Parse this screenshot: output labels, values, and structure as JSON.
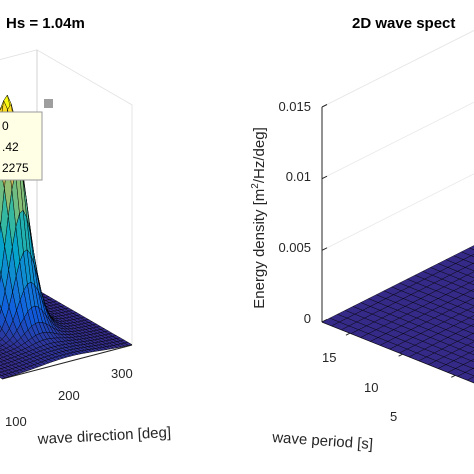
{
  "chart_data": [
    {
      "type": "surface",
      "title": "Hs = 1.04m",
      "xlabel": "wave direction [deg]",
      "x_ticks": [
        "100",
        "200",
        "300"
      ],
      "datatip": {
        "lines": [
          "0",
          ".42",
          "2275"
        ]
      },
      "peak_direction_deg": 200,
      "colormap": "parula",
      "colormap_colors": [
        "#352a87",
        "#0f5cdd",
        "#1481d6",
        "#06a4ca",
        "#2eb7a4",
        "#87bf77",
        "#d1bb59",
        "#fec832",
        "#f9fb0e"
      ]
    },
    {
      "type": "surface",
      "title": "2D wave spect",
      "ylabel": "Energy density [m²/Hz/deg]",
      "zlim": [
        0,
        0.015
      ],
      "z_ticks": [
        "0",
        "0.005",
        "0.01",
        "0.015"
      ],
      "xlabel": "wave period [s]",
      "period_ticks": [
        "15",
        "10",
        "5"
      ],
      "surface_value": 0,
      "surface_color": "#352a87"
    }
  ]
}
